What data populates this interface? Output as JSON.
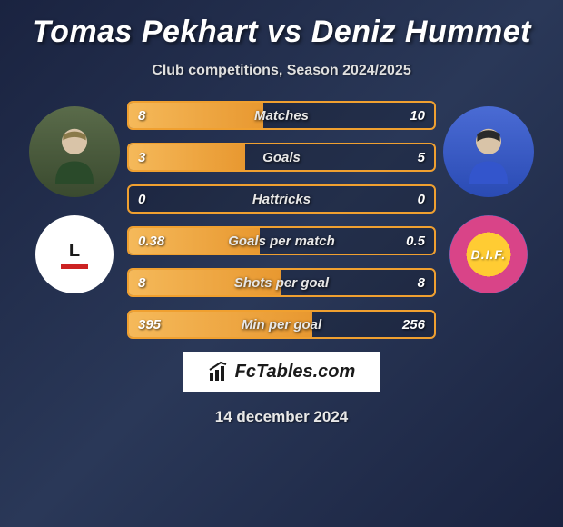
{
  "title": {
    "player1": "Tomas Pekhart",
    "vs": "vs",
    "player2": "Deniz Hummet"
  },
  "subtitle": "Club competitions, Season 2024/2025",
  "stats": [
    {
      "label": "Matches",
      "left_val": "8",
      "right_val": "10",
      "left_pct": 44,
      "right_pct": 0
    },
    {
      "label": "Goals",
      "left_val": "3",
      "right_val": "5",
      "left_pct": 38,
      "right_pct": 0
    },
    {
      "label": "Hattricks",
      "left_val": "0",
      "right_val": "0",
      "left_pct": 0,
      "right_pct": 0
    },
    {
      "label": "Goals per match",
      "left_val": "0.38",
      "right_val": "0.5",
      "left_pct": 43,
      "right_pct": 0
    },
    {
      "label": "Shots per goal",
      "left_val": "8",
      "right_val": "8",
      "left_pct": 50,
      "right_pct": 0
    },
    {
      "label": "Min per goal",
      "left_val": "395",
      "right_val": "256",
      "left_pct": 60,
      "right_pct": 0
    }
  ],
  "colors": {
    "bar_border": "#f0a030",
    "bar_fill_start": "#f5b95a",
    "bar_fill_end": "#e89830",
    "bg_gradient_a": "#1a2340",
    "bg_gradient_b": "#2a3858",
    "text": "#ffffff"
  },
  "branding": "FcTables.com",
  "date": "14 december 2024",
  "clubs": {
    "left_label": "L",
    "right_label": "D.I.F."
  }
}
